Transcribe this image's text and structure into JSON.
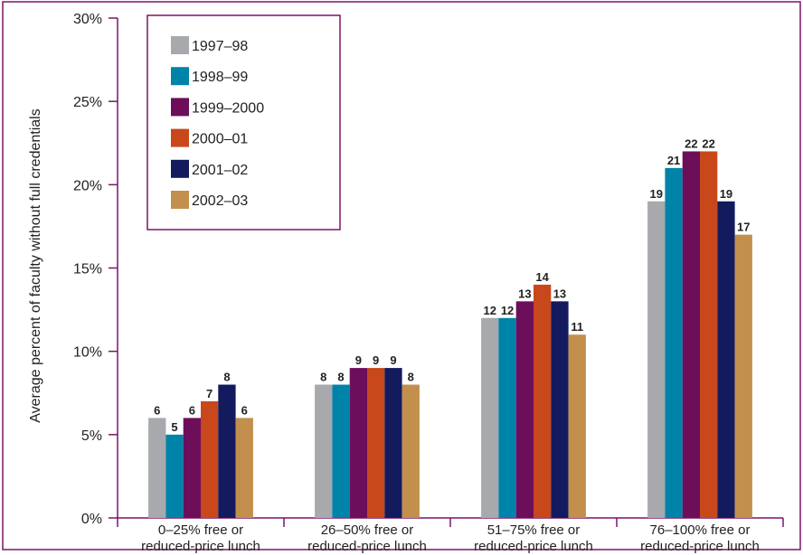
{
  "chart_data": {
    "type": "bar",
    "title": "",
    "xlabel": "",
    "ylabel": "Average percent of faculty without full credentials",
    "ylim": [
      0,
      30
    ],
    "y_ticks": [
      "0%",
      "5%",
      "10%",
      "15%",
      "20%",
      "25%",
      "30%"
    ],
    "categories": [
      [
        "0–25% free or",
        "reduced-price lunch"
      ],
      [
        "26–50% free or",
        "reduced-price lunch"
      ],
      [
        "51–75% free or",
        "reduced-price lunch"
      ],
      [
        "76–100% free or",
        "reduced-price lunch"
      ]
    ],
    "series": [
      {
        "name": "1997–98",
        "color": "#a7a9ac",
        "values": [
          6,
          8,
          12,
          19
        ]
      },
      {
        "name": "1998–99",
        "color": "#0083a9",
        "values": [
          5,
          8,
          12,
          21
        ]
      },
      {
        "name": "1999–2000",
        "color": "#6d0e5b",
        "values": [
          6,
          9,
          13,
          22
        ]
      },
      {
        "name": "2000–01",
        "color": "#c8471b",
        "values": [
          7,
          9,
          14,
          22
        ]
      },
      {
        "name": "2001–02",
        "color": "#131a5e",
        "values": [
          8,
          9,
          13,
          19
        ]
      },
      {
        "name": "2002–03",
        "color": "#c28f4c",
        "values": [
          6,
          8,
          11,
          17
        ]
      }
    ],
    "legend_position": "top-left",
    "grid": false,
    "frame_color": "#7b1468"
  }
}
